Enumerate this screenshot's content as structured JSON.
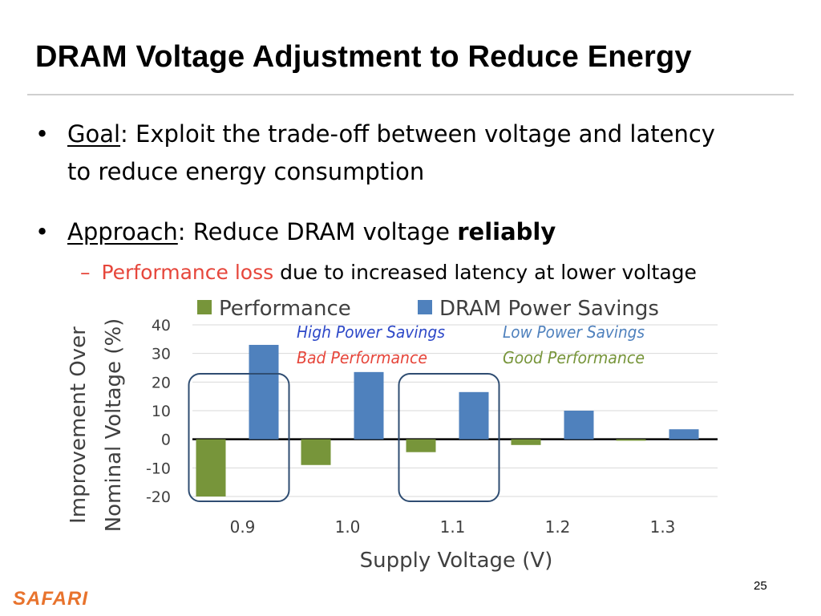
{
  "slide": {
    "title": "DRAM Voltage Adjustment to Reduce Energy",
    "bullets": [
      {
        "label": "Goal",
        "line1": ": Exploit the trade-off between voltage and latency",
        "line2": "to reduce energy consumption"
      },
      {
        "label": "Approach",
        "text": ": Reduce DRAM voltage ",
        "emphasis": "reliably",
        "sub_highlight": "Performance loss",
        "sub_text": " due to increased latency at lower voltage"
      }
    ],
    "bullet_char": "•",
    "dash_char": "–",
    "slide_number": "25",
    "logo_text": "SAFARI"
  },
  "chart_data": {
    "type": "bar",
    "categories": [
      "0.9",
      "1.0",
      "1.1",
      "1.2",
      "1.3"
    ],
    "series": [
      {
        "name": "Performance",
        "color": "#77953a",
        "values": [
          -20,
          -9,
          -4.5,
          -2,
          -0.5
        ]
      },
      {
        "name": "DRAM Power Savings",
        "color": "#4f81bd",
        "values": [
          33,
          23.5,
          16.5,
          10,
          3.5
        ]
      }
    ],
    "xlabel": "Supply Voltage (V)",
    "ylabel_lines": [
      "Improvement Over",
      "Nominal Voltage (%)"
    ],
    "ylim": [
      -20,
      40
    ],
    "yticks": [
      "40",
      "30",
      "20",
      "10",
      "0",
      "-10",
      "-20"
    ],
    "grid": true,
    "legend_position": "top",
    "annotations": [
      {
        "line1": "High Power Savings",
        "line2": "Bad Performance",
        "color1": "#2e49c8",
        "color2": "#e6463b",
        "highlight_category": "0.9"
      },
      {
        "line1": "Low Power Savings",
        "line2": "Good Performance",
        "color1": "#4f81bd",
        "color2": "#77953a",
        "highlight_category": "1.1"
      }
    ]
  }
}
